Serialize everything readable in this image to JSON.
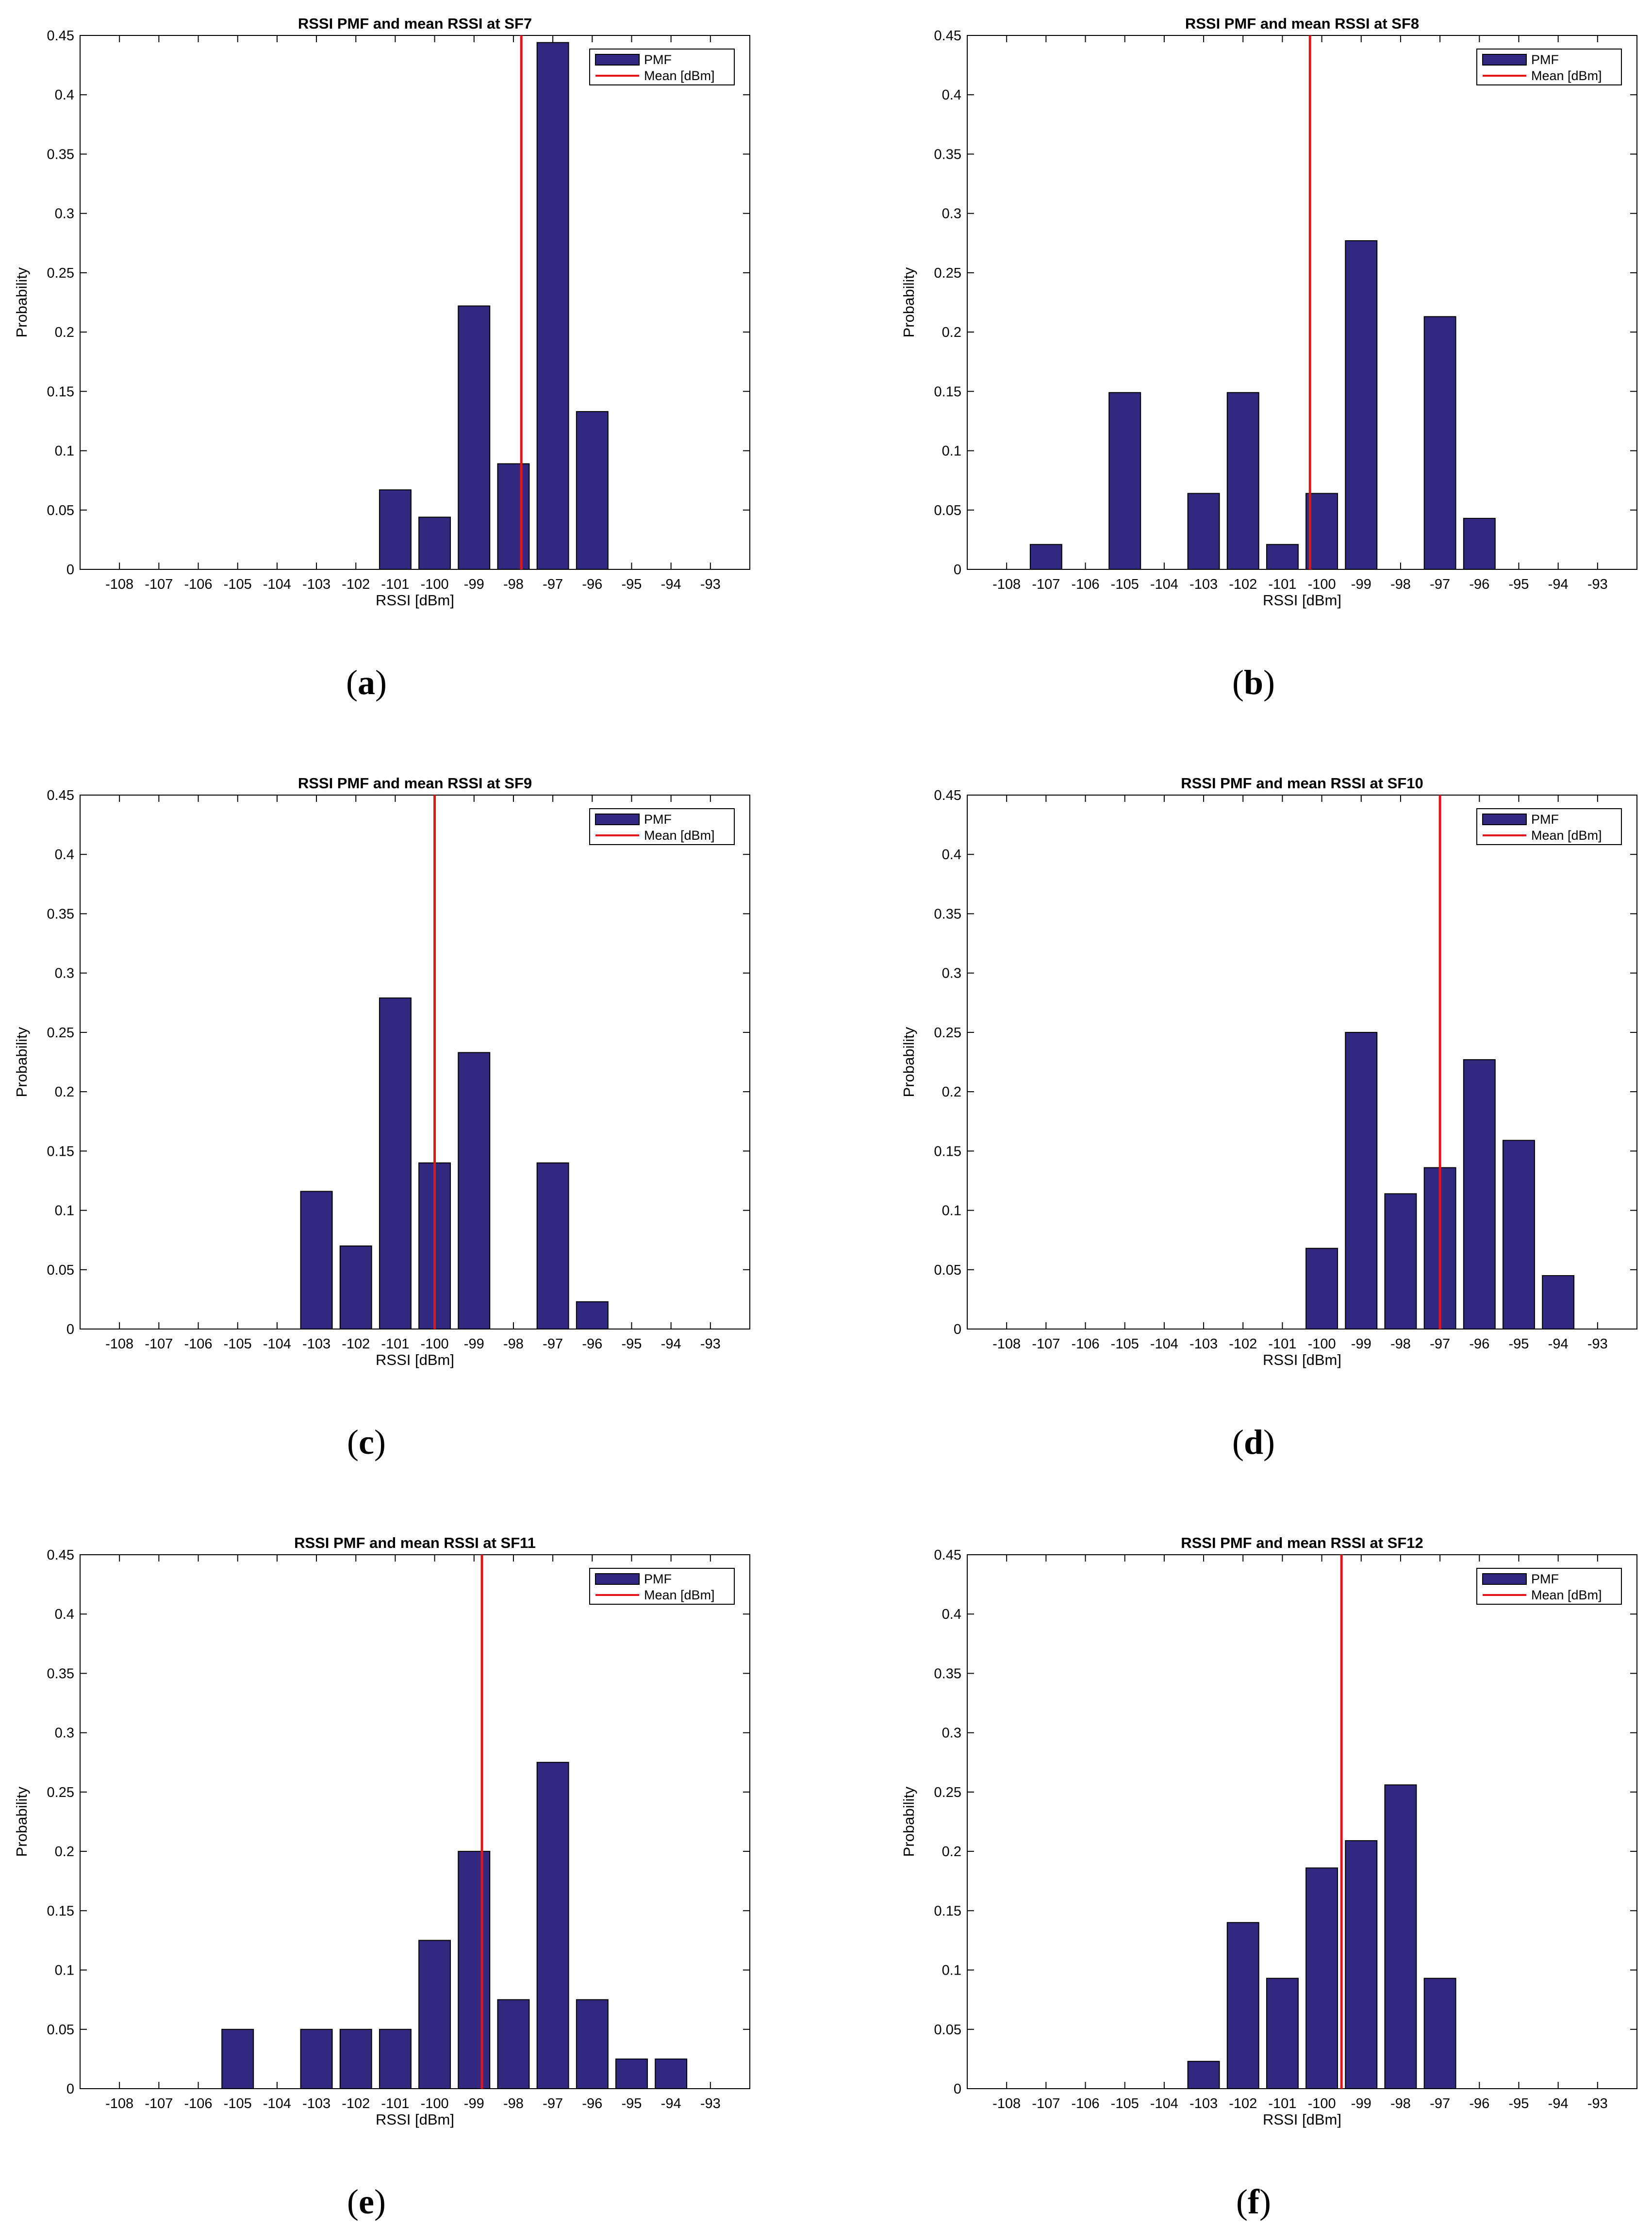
{
  "chart_data": [
    {
      "id": "a",
      "type": "bar",
      "title": "RSSI PMF and mean RSSI at SF7",
      "xlabel": "RSSI [dBm]",
      "ylabel": "Probability",
      "categories": [
        "-108",
        "-107",
        "-106",
        "-105",
        "-104",
        "-103",
        "-102",
        "-101",
        "-100",
        "-99",
        "-98",
        "-97",
        "-96",
        "-95",
        "-94",
        "-93"
      ],
      "values": [
        0,
        0,
        0,
        0,
        0,
        0,
        0,
        0.067,
        0.044,
        0.222,
        0.089,
        0.444,
        0.133,
        0,
        0,
        0
      ],
      "mean": -97.8,
      "ylim": [
        0,
        0.45
      ],
      "yticks": [
        "0",
        "0.05",
        "0.1",
        "0.15",
        "0.2",
        "0.25",
        "0.3",
        "0.35",
        "0.4",
        "0.45"
      ],
      "legend": [
        "PMF",
        "Mean [dBm]"
      ],
      "caption": "a"
    },
    {
      "id": "b",
      "type": "bar",
      "title": "RSSI PMF and mean RSSI at SF8",
      "xlabel": "RSSI [dBm]",
      "ylabel": "Probability",
      "categories": [
        "-108",
        "-107",
        "-106",
        "-105",
        "-104",
        "-103",
        "-102",
        "-101",
        "-100",
        "-99",
        "-98",
        "-97",
        "-96",
        "-95",
        "-94",
        "-93"
      ],
      "values": [
        0,
        0.021,
        0,
        0.149,
        0,
        0.064,
        0.149,
        0.021,
        0.064,
        0.277,
        0,
        0.213,
        0.043,
        0,
        0,
        0
      ],
      "mean": -100.3,
      "ylim": [
        0,
        0.45
      ],
      "yticks": [
        "0",
        "0.05",
        "0.1",
        "0.15",
        "0.2",
        "0.25",
        "0.3",
        "0.35",
        "0.4",
        "0.45"
      ],
      "legend": [
        "PMF",
        "Mean [dBm]"
      ],
      "caption": "b"
    },
    {
      "id": "c",
      "type": "bar",
      "title": "RSSI PMF and mean RSSI at SF9",
      "xlabel": "RSSI [dBm]",
      "ylabel": "Probability",
      "categories": [
        "-108",
        "-107",
        "-106",
        "-105",
        "-104",
        "-103",
        "-102",
        "-101",
        "-100",
        "-99",
        "-98",
        "-97",
        "-96",
        "-95",
        "-94",
        "-93"
      ],
      "values": [
        0,
        0,
        0,
        0,
        0,
        0.116,
        0.07,
        0.279,
        0.14,
        0.233,
        0,
        0.14,
        0.023,
        0,
        0,
        0
      ],
      "mean": -100.0,
      "ylim": [
        0,
        0.45
      ],
      "yticks": [
        "0",
        "0.05",
        "0.1",
        "0.15",
        "0.2",
        "0.25",
        "0.3",
        "0.35",
        "0.4",
        "0.45"
      ],
      "legend": [
        "PMF",
        "Mean [dBm]"
      ],
      "caption": "c"
    },
    {
      "id": "d",
      "type": "bar",
      "title": "RSSI PMF and mean RSSI at SF10",
      "xlabel": "RSSI [dBm]",
      "ylabel": "Probability",
      "categories": [
        "-108",
        "-107",
        "-106",
        "-105",
        "-104",
        "-103",
        "-102",
        "-101",
        "-100",
        "-99",
        "-98",
        "-97",
        "-96",
        "-95",
        "-94",
        "-93"
      ],
      "values": [
        0,
        0,
        0,
        0,
        0,
        0,
        0,
        0,
        0.068,
        0.25,
        0.114,
        0.136,
        0.227,
        0.159,
        0.045,
        0
      ],
      "mean": -97.0,
      "ylim": [
        0,
        0.45
      ],
      "yticks": [
        "0",
        "0.05",
        "0.1",
        "0.15",
        "0.2",
        "0.25",
        "0.3",
        "0.35",
        "0.4",
        "0.45"
      ],
      "legend": [
        "PMF",
        "Mean [dBm]"
      ],
      "caption": "d"
    },
    {
      "id": "e",
      "type": "bar",
      "title": "RSSI PMF and mean RSSI at SF11",
      "xlabel": "RSSI [dBm]",
      "ylabel": "Probability",
      "categories": [
        "-108",
        "-107",
        "-106",
        "-105",
        "-104",
        "-103",
        "-102",
        "-101",
        "-100",
        "-99",
        "-98",
        "-97",
        "-96",
        "-95",
        "-94",
        "-93"
      ],
      "values": [
        0,
        0,
        0,
        0.05,
        0,
        0.05,
        0.05,
        0.05,
        0.125,
        0.2,
        0.075,
        0.275,
        0.075,
        0.025,
        0.025,
        0
      ],
      "mean": -98.8,
      "ylim": [
        0,
        0.45
      ],
      "yticks": [
        "0",
        "0.05",
        "0.1",
        "0.15",
        "0.2",
        "0.25",
        "0.3",
        "0.35",
        "0.4",
        "0.45"
      ],
      "legend": [
        "PMF",
        "Mean [dBm]"
      ],
      "caption": "e"
    },
    {
      "id": "f",
      "type": "bar",
      "title": "RSSI PMF and mean RSSI at SF12",
      "xlabel": "RSSI [dBm]",
      "ylabel": "Probability",
      "categories": [
        "-108",
        "-107",
        "-106",
        "-105",
        "-104",
        "-103",
        "-102",
        "-101",
        "-100",
        "-99",
        "-98",
        "-97",
        "-96",
        "-95",
        "-94",
        "-93"
      ],
      "values": [
        0,
        0,
        0,
        0,
        0,
        0.023,
        0.14,
        0.093,
        0.186,
        0.209,
        0.256,
        0.093,
        0,
        0,
        0,
        0
      ],
      "mean": -99.5,
      "ylim": [
        0,
        0.45
      ],
      "yticks": [
        "0",
        "0.05",
        "0.1",
        "0.15",
        "0.2",
        "0.25",
        "0.3",
        "0.35",
        "0.4",
        "0.45"
      ],
      "legend": [
        "PMF",
        "Mean [dBm]"
      ],
      "caption": "f"
    }
  ],
  "colors": {
    "bar_fill": "#33287f",
    "bar_stroke": "#000000",
    "mean_line": "#e3151b",
    "axis": "#000000"
  }
}
